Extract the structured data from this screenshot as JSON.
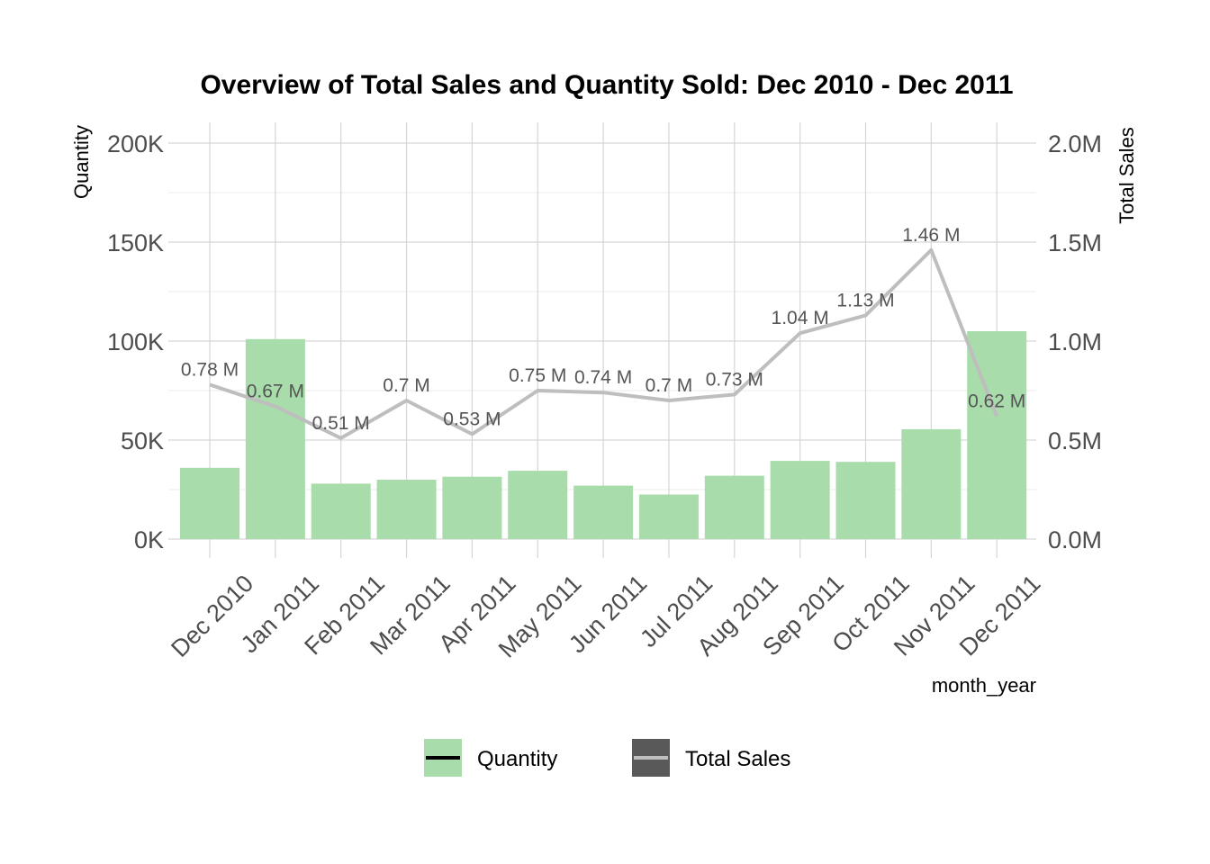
{
  "chart_data": {
    "type": "bar",
    "title": "Overview of Total Sales and Quantity Sold: Dec 2010 - Dec 2011",
    "xlabel": "month_year",
    "ylabel": "Quantity",
    "y2label": "Total Sales",
    "categories": [
      "Dec 2010",
      "Jan 2011",
      "Feb 2011",
      "Mar 2011",
      "Apr 2011",
      "May 2011",
      "Jun 2011",
      "Jul 2011",
      "Aug 2011",
      "Sep 2011",
      "Oct 2011",
      "Nov 2011",
      "Dec 2011"
    ],
    "ylim": [
      0,
      210000
    ],
    "y2lim": [
      0,
      2100000
    ],
    "yticks": [
      0,
      50000,
      100000,
      150000,
      200000
    ],
    "ytick_labels": [
      "0K",
      "50K",
      "100K",
      "150K",
      "200K"
    ],
    "y2ticks": [
      0,
      500000,
      1000000,
      1500000,
      2000000
    ],
    "y2tick_labels": [
      "0.0M",
      "0.5M",
      "1.0M",
      "1.5M",
      "2.0M"
    ],
    "grid": true,
    "legend_position": "bottom",
    "series": [
      {
        "name": "Quantity",
        "kind": "bar",
        "axis": "left",
        "color": "#a8dcaa",
        "values": [
          36000,
          101000,
          28000,
          30000,
          31500,
          34500,
          27000,
          22500,
          32000,
          39500,
          39000,
          55500,
          105000
        ]
      },
      {
        "name": "Total Sales",
        "kind": "line",
        "axis": "right",
        "color": "#bebebe",
        "values": [
          780000,
          670000,
          510000,
          700000,
          530000,
          750000,
          740000,
          700000,
          730000,
          1040000,
          1130000,
          1460000,
          620000
        ],
        "labels": [
          "0.78 M",
          "0.67 M",
          "0.51 M",
          "0.7 M",
          "0.53 M",
          "0.75 M",
          "0.74 M",
          "0.7 M",
          "0.73 M",
          "1.04 M",
          "1.13 M",
          "1.46 M",
          "0.62 M"
        ]
      }
    ]
  }
}
